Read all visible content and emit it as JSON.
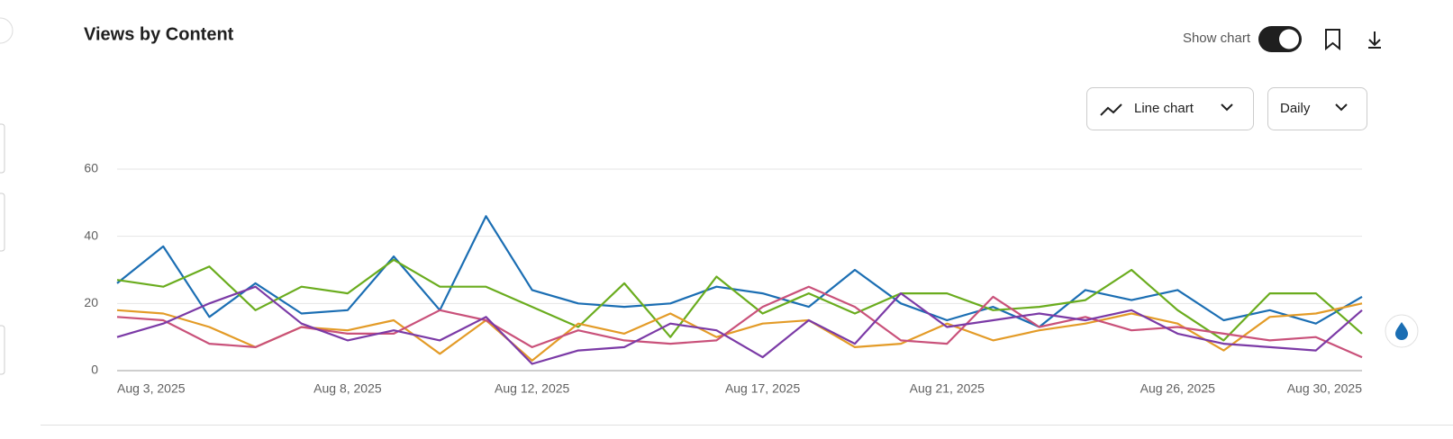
{
  "ui": {
    "title": "Views by Content",
    "show_chart": "Show chart",
    "chart_type": "Line chart",
    "interval": "Daily"
  },
  "chart_data": {
    "type": "line",
    "categories": [
      "Aug 3, 2025",
      null,
      null,
      null,
      null,
      "Aug 8, 2025",
      null,
      null,
      null,
      "Aug 12, 2025",
      null,
      null,
      null,
      null,
      "Aug 17, 2025",
      null,
      null,
      null,
      "Aug 21, 2025",
      null,
      null,
      null,
      null,
      "Aug 26, 2025",
      null,
      null,
      null,
      "Aug 30, 2025"
    ],
    "ylim": [
      0,
      60
    ],
    "yticks": [
      0,
      20,
      40,
      60
    ],
    "grid": true,
    "series": [
      {
        "color": "#1b6eb3",
        "values": [
          26,
          37,
          16,
          26,
          17,
          18,
          34,
          18,
          46,
          24,
          20,
          19,
          20,
          25,
          23,
          19,
          30,
          20,
          15,
          19,
          13,
          24,
          21,
          24,
          15,
          18,
          14,
          22
        ]
      },
      {
        "color": "#6aac1e",
        "values": [
          27,
          25,
          31,
          18,
          25,
          23,
          33,
          25,
          25,
          19,
          13,
          26,
          10,
          28,
          17,
          23,
          17,
          23,
          23,
          18,
          19,
          21,
          30,
          18,
          9,
          23,
          23,
          11
        ]
      },
      {
        "color": "#e39b27",
        "values": [
          18,
          17,
          13,
          7,
          13,
          12,
          15,
          5,
          15,
          3,
          14,
          11,
          17,
          10,
          14,
          15,
          7,
          8,
          14,
          9,
          12,
          14,
          17,
          14,
          6,
          16,
          17,
          20
        ]
      },
      {
        "color": "#c9517a",
        "values": [
          16,
          15,
          8,
          7,
          13,
          11,
          11,
          18,
          15,
          7,
          12,
          9,
          8,
          9,
          19,
          25,
          19,
          9,
          8,
          22,
          13,
          16,
          12,
          13,
          11,
          9,
          10,
          4
        ]
      },
      {
        "color": "#7b3aa6",
        "values": [
          10,
          14,
          20,
          25,
          14,
          9,
          12,
          9,
          16,
          2,
          6,
          7,
          14,
          12,
          4,
          15,
          8,
          23,
          13,
          15,
          17,
          15,
          18,
          11,
          8,
          7,
          6,
          18
        ]
      }
    ]
  }
}
